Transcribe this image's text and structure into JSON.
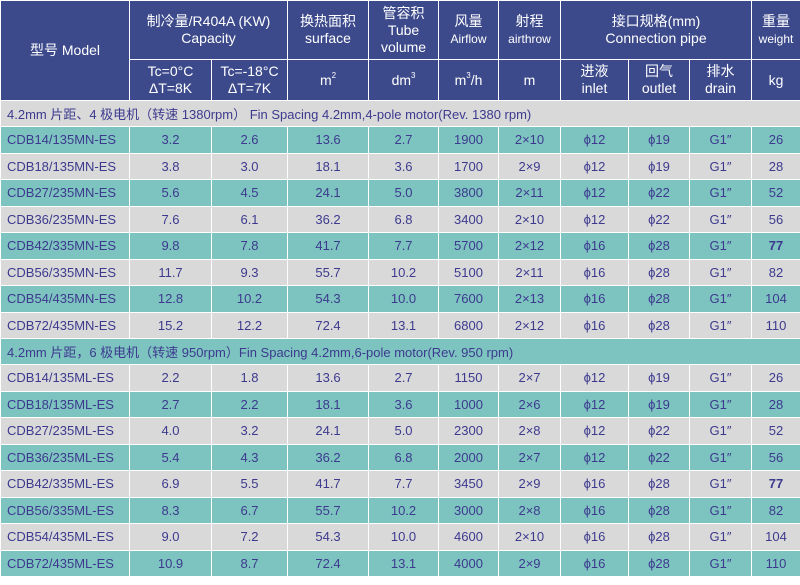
{
  "header": {
    "model": "型号 Model",
    "capacity_cn": "制冷量/R404A (KW)",
    "capacity_en": "Capacity",
    "capacity_sub1_line1": "Tc=0°C",
    "capacity_sub1_line2": "ΔT=8K",
    "capacity_sub2_line1": "Tc=-18°C",
    "capacity_sub2_line2": "ΔT=7K",
    "surface_cn": "换热面积",
    "surface_en": "surface",
    "surface_unit": "m",
    "surface_unit_sup": "2",
    "tube_cn": "管容积",
    "tube_en1": "Tube",
    "tube_en2": "volume",
    "tube_unit": "dm",
    "tube_unit_sup": "3",
    "airflow_cn": "风量",
    "airflow_en": "Airflow",
    "airflow_unit_a": "m",
    "airflow_unit_sup": "3",
    "airflow_unit_b": "/h",
    "airthrow_cn": "射程",
    "airthrow_en": "airthrow",
    "airthrow_unit": "m",
    "pipe_cn": "接口规格(mm)",
    "pipe_en": "Connection pipe",
    "inlet_cn": "进液",
    "inlet_en": "inlet",
    "outlet_cn": "回气",
    "outlet_en": "outlet",
    "drain_cn": "排水",
    "drain_en": "drain",
    "weight_cn": "重量",
    "weight_en": "weight",
    "weight_unit": "kg"
  },
  "sections": [
    {
      "title": "4.2mm 片距、4 极电机（转速 1380rpm） Fin Spacing 4.2mm,4-pole motor(Rev. 1380 rpm)",
      "rows": [
        {
          "model": "CDB14/135MN-ES",
          "cap1": "3.2",
          "cap2": "2.6",
          "surface": "13.6",
          "tube": "2.7",
          "airflow": "1900",
          "airthrow": "2×10",
          "inlet": "ϕ12",
          "outlet": "ϕ19",
          "drain": "G1″",
          "weight": "26"
        },
        {
          "model": "CDB18/135MN-ES",
          "cap1": "3.8",
          "cap2": "3.0",
          "surface": "18.1",
          "tube": "3.6",
          "airflow": "1700",
          "airthrow": "2×9",
          "inlet": "ϕ12",
          "outlet": "ϕ19",
          "drain": "G1″",
          "weight": "28"
        },
        {
          "model": "CDB27/235MN-ES",
          "cap1": "5.6",
          "cap2": "4.5",
          "surface": "24.1",
          "tube": "5.0",
          "airflow": "3800",
          "airthrow": "2×11",
          "inlet": "ϕ12",
          "outlet": "ϕ22",
          "drain": "G1″",
          "weight": "52"
        },
        {
          "model": "CDB36/235MN-ES",
          "cap1": "7.6",
          "cap2": "6.1",
          "surface": "36.2",
          "tube": "6.8",
          "airflow": "3400",
          "airthrow": "2×10",
          "inlet": "ϕ12",
          "outlet": "ϕ22",
          "drain": "G1″",
          "weight": "56"
        },
        {
          "model": "CDB42/335MN-ES",
          "cap1": "9.8",
          "cap2": "7.8",
          "surface": "41.7",
          "tube": "7.7",
          "airflow": "5700",
          "airthrow": "2×12",
          "inlet": "ϕ16",
          "outlet": "ϕ28",
          "drain": "G1″",
          "weight": "77"
        },
        {
          "model": "CDB56/335MN-ES",
          "cap1": "11.7",
          "cap2": "9.3",
          "surface": "55.7",
          "tube": "10.2",
          "airflow": "5100",
          "airthrow": "2×11",
          "inlet": "ϕ16",
          "outlet": "ϕ28",
          "drain": "G1″",
          "weight": "82"
        },
        {
          "model": "CDB54/435MN-ES",
          "cap1": "12.8",
          "cap2": "10.2",
          "surface": "54.3",
          "tube": "10.0",
          "airflow": "7600",
          "airthrow": "2×13",
          "inlet": "ϕ16",
          "outlet": "ϕ28",
          "drain": "G1″",
          "weight": "104"
        },
        {
          "model": "CDB72/435MN-ES",
          "cap1": "15.2",
          "cap2": "12.2",
          "surface": "72.4",
          "tube": "13.1",
          "airflow": "6800",
          "airthrow": "2×12",
          "inlet": "ϕ16",
          "outlet": "ϕ28",
          "drain": "G1″",
          "weight": "110"
        }
      ]
    },
    {
      "title": "4.2mm 片距，6 极电机（转速 950rpm）Fin Spacing 4.2mm,6-pole motor(Rev. 950 rpm)",
      "rows": [
        {
          "model": "CDB14/135ML-ES",
          "cap1": "2.2",
          "cap2": "1.8",
          "surface": "13.6",
          "tube": "2.7",
          "airflow": "1150",
          "airthrow": "2×7",
          "inlet": "ϕ12",
          "outlet": "ϕ19",
          "drain": "G1″",
          "weight": "26"
        },
        {
          "model": "CDB18/135ML-ES",
          "cap1": "2.7",
          "cap2": "2.2",
          "surface": "18.1",
          "tube": "3.6",
          "airflow": "1000",
          "airthrow": "2×6",
          "inlet": "ϕ12",
          "outlet": "ϕ19",
          "drain": "G1″",
          "weight": "28"
        },
        {
          "model": "CDB27/235ML-ES",
          "cap1": "4.0",
          "cap2": "3.2",
          "surface": "24.1",
          "tube": "5.0",
          "airflow": "2300",
          "airthrow": "2×8",
          "inlet": "ϕ12",
          "outlet": "ϕ22",
          "drain": "G1″",
          "weight": "52"
        },
        {
          "model": "CDB36/235ML-ES",
          "cap1": "5.4",
          "cap2": "4.3",
          "surface": "36.2",
          "tube": "6.8",
          "airflow": "2000",
          "airthrow": "2×7",
          "inlet": "ϕ12",
          "outlet": "ϕ22",
          "drain": "G1″",
          "weight": "56"
        },
        {
          "model": "CDB42/335ML-ES",
          "cap1": "6.9",
          "cap2": "5.5",
          "surface": "41.7",
          "tube": "7.7",
          "airflow": "3450",
          "airthrow": "2×9",
          "inlet": "ϕ16",
          "outlet": "ϕ28",
          "drain": "G1″",
          "weight": "77"
        },
        {
          "model": "CDB56/335ML-ES",
          "cap1": "8.3",
          "cap2": "6.7",
          "surface": "55.7",
          "tube": "10.2",
          "airflow": "3000",
          "airthrow": "2×8",
          "inlet": "ϕ16",
          "outlet": "ϕ28",
          "drain": "G1″",
          "weight": "82"
        },
        {
          "model": "CDB54/435ML-ES",
          "cap1": "9.0",
          "cap2": "7.2",
          "surface": "54.3",
          "tube": "10.0",
          "airflow": "4600",
          "airthrow": "2×10",
          "inlet": "ϕ16",
          "outlet": "ϕ28",
          "drain": "G1″",
          "weight": "104"
        },
        {
          "model": "CDB72/435ML-ES",
          "cap1": "10.9",
          "cap2": "8.7",
          "surface": "72.4",
          "tube": "13.1",
          "airflow": "4000",
          "airthrow": "2×9",
          "inlet": "ϕ16",
          "outlet": "ϕ28",
          "drain": "G1″",
          "weight": "110"
        }
      ]
    }
  ],
  "colors": {
    "header_bg": "#3c4a8c",
    "teal_row": "#7dc4c1",
    "gray_row": "#d9d9d9",
    "text": "#3d3a8e"
  }
}
